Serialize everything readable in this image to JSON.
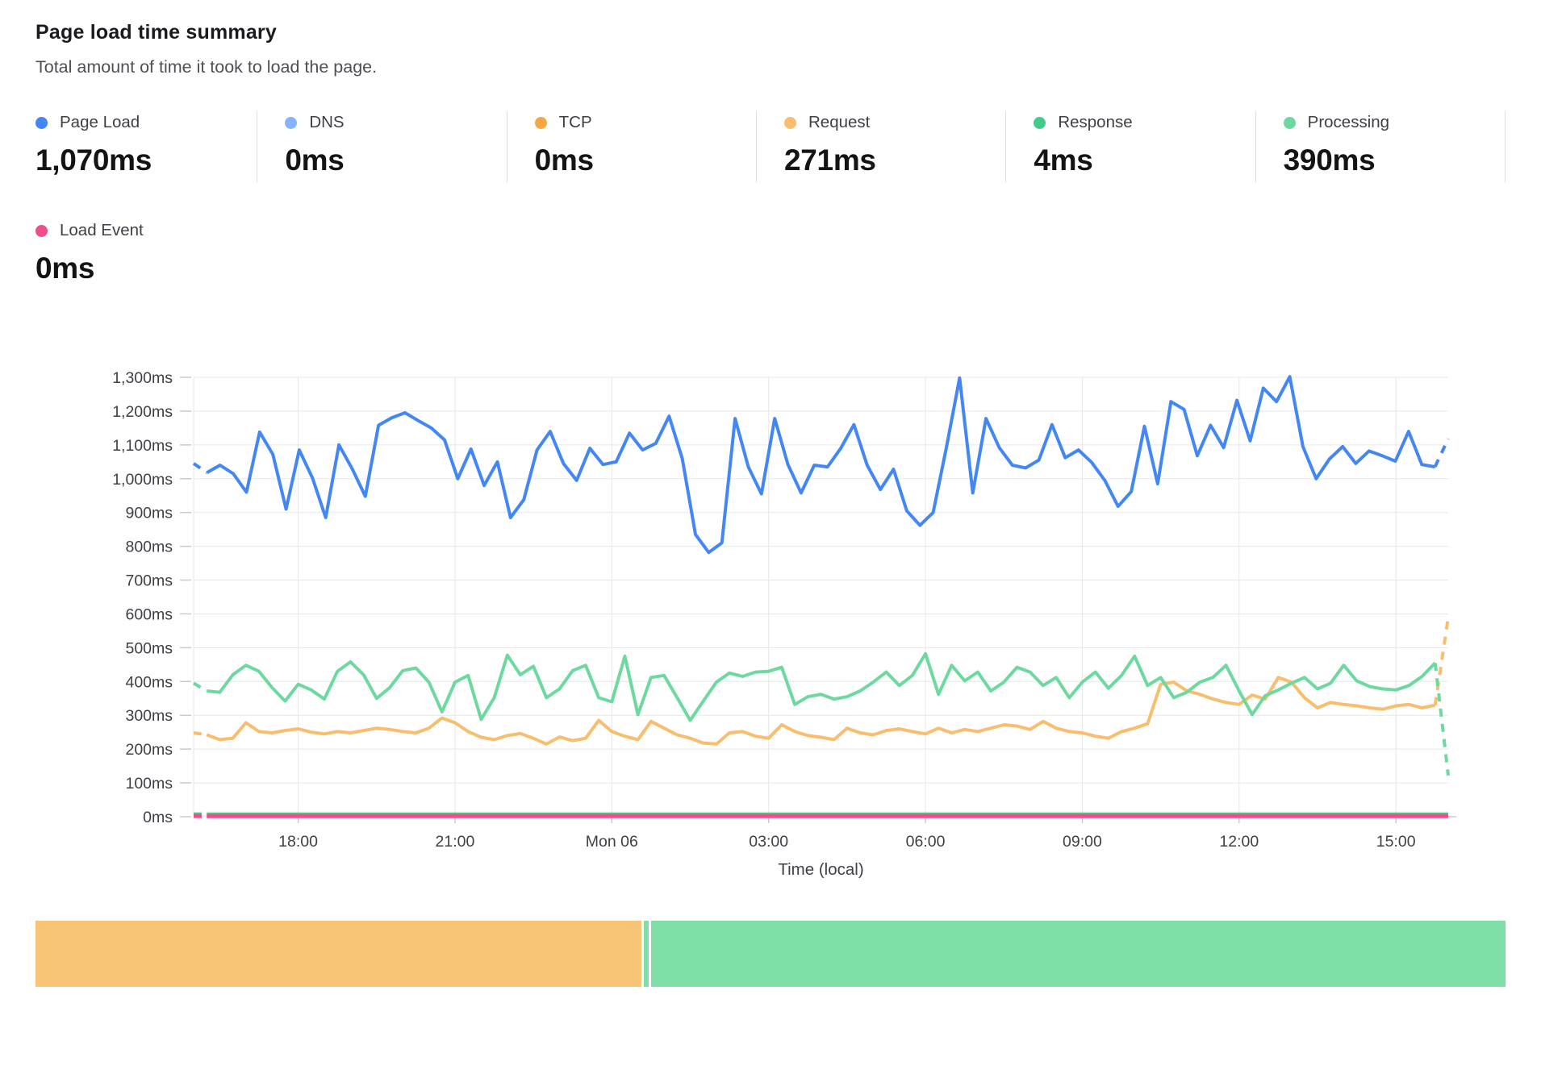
{
  "header": {
    "title": "Page load time summary",
    "subtitle": "Total amount of time it took to load the page."
  },
  "stats_row1": [
    {
      "id": "page_load",
      "label": "Page Load",
      "value": "1,070ms",
      "color": "#4386f5"
    },
    {
      "id": "dns",
      "label": "DNS",
      "value": "0ms",
      "color": "#85b5f8"
    },
    {
      "id": "tcp",
      "label": "TCP",
      "value": "0ms",
      "color": "#f6a644"
    },
    {
      "id": "request",
      "label": "Request",
      "value": "271ms",
      "color": "#f8be6e"
    },
    {
      "id": "response",
      "label": "Response",
      "value": "4ms",
      "color": "#45cb89"
    },
    {
      "id": "processing",
      "label": "Processing",
      "value": "390ms",
      "color": "#6ed99f"
    }
  ],
  "stats_row2": [
    {
      "id": "load_event",
      "label": "Load Event",
      "value": "0ms",
      "color": "#ee4e8b"
    }
  ],
  "chart_data": {
    "type": "line",
    "unit": "ms",
    "xlabel": "Time (local)",
    "ylim": [
      0,
      1300
    ],
    "y_step": 100,
    "y_tick_labels": [
      "0ms",
      "100ms",
      "200ms",
      "300ms",
      "400ms",
      "500ms",
      "600ms",
      "700ms",
      "800ms",
      "900ms",
      "1,000ms",
      "1,100ms",
      "1,200ms",
      "1,300ms"
    ],
    "x_span_hours": 24,
    "x_ticks": [
      {
        "label": "18:00",
        "hour": 2
      },
      {
        "label": "21:00",
        "hour": 5
      },
      {
        "label": "Mon 06",
        "hour": 8
      },
      {
        "label": "03:00",
        "hour": 11
      },
      {
        "label": "06:00",
        "hour": 14
      },
      {
        "label": "09:00",
        "hour": 17
      },
      {
        "label": "12:00",
        "hour": 20
      },
      {
        "label": "15:00",
        "hour": 23
      }
    ],
    "grid": true,
    "series": [
      {
        "id": "dns",
        "name": "DNS",
        "color": "#85b5f8",
        "const": 0,
        "dash_first": 1,
        "dash_last": 0
      },
      {
        "id": "tcp",
        "name": "TCP",
        "color": "#f6a644",
        "const": 0,
        "dash_first": 1,
        "dash_last": 0
      },
      {
        "id": "response",
        "name": "Response",
        "color": "#45cb89",
        "const": 9,
        "dash_first": 1,
        "dash_last": 0
      },
      {
        "id": "load_event",
        "name": "Load Event",
        "color": "#ee4e8b",
        "const": 2,
        "dash_first": 1,
        "dash_last": 0
      },
      {
        "id": "request",
        "name": "Request",
        "color": "#f8be6e",
        "dash_first": 1,
        "dash_last": 1,
        "values": [
          248,
          242,
          228,
          232,
          278,
          252,
          248,
          255,
          260,
          250,
          245,
          252,
          248,
          255,
          262,
          258,
          252,
          248,
          262,
          292,
          278,
          252,
          235,
          228,
          240,
          246,
          232,
          215,
          236,
          225,
          232,
          285,
          252,
          238,
          228,
          282,
          262,
          242,
          232,
          218,
          215,
          248,
          252,
          238,
          232,
          272,
          252,
          240,
          235,
          228,
          262,
          248,
          242,
          255,
          260,
          252,
          245,
          262,
          248,
          258,
          252,
          262,
          272,
          268,
          258,
          282,
          262,
          252,
          248,
          238,
          232,
          252,
          262,
          275,
          392,
          398,
          372,
          362,
          348,
          338,
          332,
          360,
          348,
          412,
          398,
          352,
          322,
          338,
          332,
          328,
          322,
          318,
          328,
          332,
          322,
          330,
          590
        ]
      },
      {
        "id": "processing",
        "name": "Processing",
        "color": "#6ed99f",
        "dash_first": 1,
        "dash_last": 1,
        "values": [
          395,
          372,
          368,
          420,
          448,
          430,
          382,
          342,
          392,
          375,
          348,
          430,
          458,
          420,
          350,
          382,
          432,
          440,
          398,
          310,
          398,
          418,
          288,
          352,
          478,
          420,
          445,
          352,
          378,
          432,
          448,
          352,
          340,
          475,
          302,
          412,
          418,
          352,
          285,
          342,
          398,
          425,
          415,
          428,
          430,
          442,
          332,
          355,
          362,
          348,
          355,
          372,
          398,
          428,
          388,
          418,
          482,
          362,
          448,
          402,
          428,
          372,
          398,
          442,
          428,
          388,
          412,
          352,
          398,
          428,
          380,
          418,
          475,
          388,
          412,
          352,
          368,
          398,
          412,
          448,
          372,
          302,
          358,
          375,
          395,
          412,
          378,
          395,
          448,
          402,
          385,
          378,
          375,
          388,
          415,
          455,
          122
        ]
      },
      {
        "id": "page_load",
        "name": "Page Load",
        "color": "#4386f5",
        "dash_first": 1,
        "dash_last": 1,
        "values": [
          1045,
          1018,
          1040,
          1015,
          960,
          1138,
          1072,
          910,
          1085,
          1002,
          885,
          1100,
          1030,
          948,
          1158,
          1180,
          1195,
          1172,
          1150,
          1115,
          1000,
          1088,
          980,
          1050,
          885,
          938,
          1085,
          1140,
          1045,
          995,
          1090,
          1042,
          1050,
          1135,
          1085,
          1105,
          1185,
          1060,
          835,
          782,
          810,
          1178,
          1035,
          955,
          1178,
          1042,
          958,
          1040,
          1035,
          1090,
          1160,
          1040,
          968,
          1028,
          905,
          862,
          900,
          1092,
          1298,
          958,
          1178,
          1092,
          1040,
          1032,
          1055,
          1160,
          1062,
          1085,
          1048,
          995,
          918,
          962,
          1155,
          985,
          1228,
          1205,
          1068,
          1158,
          1092,
          1232,
          1112,
          1268,
          1228,
          1302,
          1095,
          1000,
          1058,
          1095,
          1045,
          1082,
          1068,
          1052,
          1140,
          1042,
          1035,
          1118
        ]
      }
    ]
  },
  "status_bar": {
    "segments": [
      {
        "color": "#f8c475",
        "width_pct": 41.2
      },
      {
        "color": "#7edfa7",
        "width_pct": 0.35
      },
      {
        "color": "#7edfa7",
        "width_pct": 57.8
      }
    ]
  }
}
